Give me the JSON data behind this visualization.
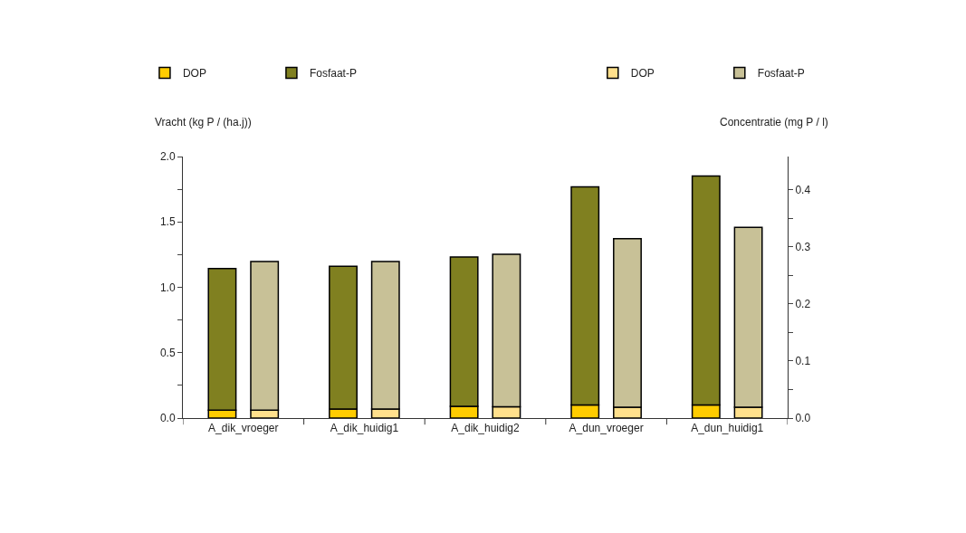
{
  "chart_data": {
    "type": "bar",
    "stacked": true,
    "categories": [
      "A_dik_vroeger",
      "A_dik_huidig1",
      "A_dik_huidig2",
      "A_dun_vroeger",
      "A_dun_huidig1"
    ],
    "series": [
      {
        "name": "DOP",
        "color": "#ffcc00",
        "values": [
          0.06,
          0.07,
          0.09,
          0.1,
          0.1
        ]
      },
      {
        "name": "Fosfaat-P",
        "color": "#808020",
        "values": [
          1.084,
          1.091,
          1.142,
          1.669,
          1.752
        ]
      },
      {
        "name": "DOP",
        "color": "#ffe08c",
        "axis": "y2",
        "values": [
          0.014,
          0.016,
          0.02,
          0.019,
          0.019
        ]
      },
      {
        "name": "Fosfaat-P",
        "color": "#c8c197",
        "axis": "y2",
        "values": [
          0.26,
          0.258,
          0.267,
          0.295,
          0.315
        ]
      }
    ],
    "ylabel": "Vracht (kg P / (ha.j))",
    "y2label": "Concentratie (mg P / l)",
    "ylim": [
      0,
      2.0
    ],
    "yticks": [
      {
        "value": 0,
        "label": "0.0"
      },
      {
        "value": 0.25,
        "label": null
      },
      {
        "value": 0.5,
        "label": "0.5"
      },
      {
        "value": 0.75,
        "label": null
      },
      {
        "value": 1.0,
        "label": "1.0"
      },
      {
        "value": 1.25,
        "label": null
      },
      {
        "value": 1.5,
        "label": "1.5"
      },
      {
        "value": 1.75,
        "label": null
      },
      {
        "value": 2.0,
        "label": "2.0"
      }
    ],
    "y2lim": [
      0,
      0.458
    ],
    "y2ticks": [
      {
        "value": 0,
        "label": "0.0"
      },
      {
        "value": 0.05,
        "label": null
      },
      {
        "value": 0.1,
        "label": "0.1"
      },
      {
        "value": 0.15,
        "label": null
      },
      {
        "value": 0.2,
        "label": "0.2"
      },
      {
        "value": 0.25,
        "label": null
      },
      {
        "value": 0.3,
        "label": "0.3"
      },
      {
        "value": 0.35,
        "label": null
      },
      {
        "value": 0.4,
        "label": "0.4"
      }
    ],
    "legend": "top"
  }
}
